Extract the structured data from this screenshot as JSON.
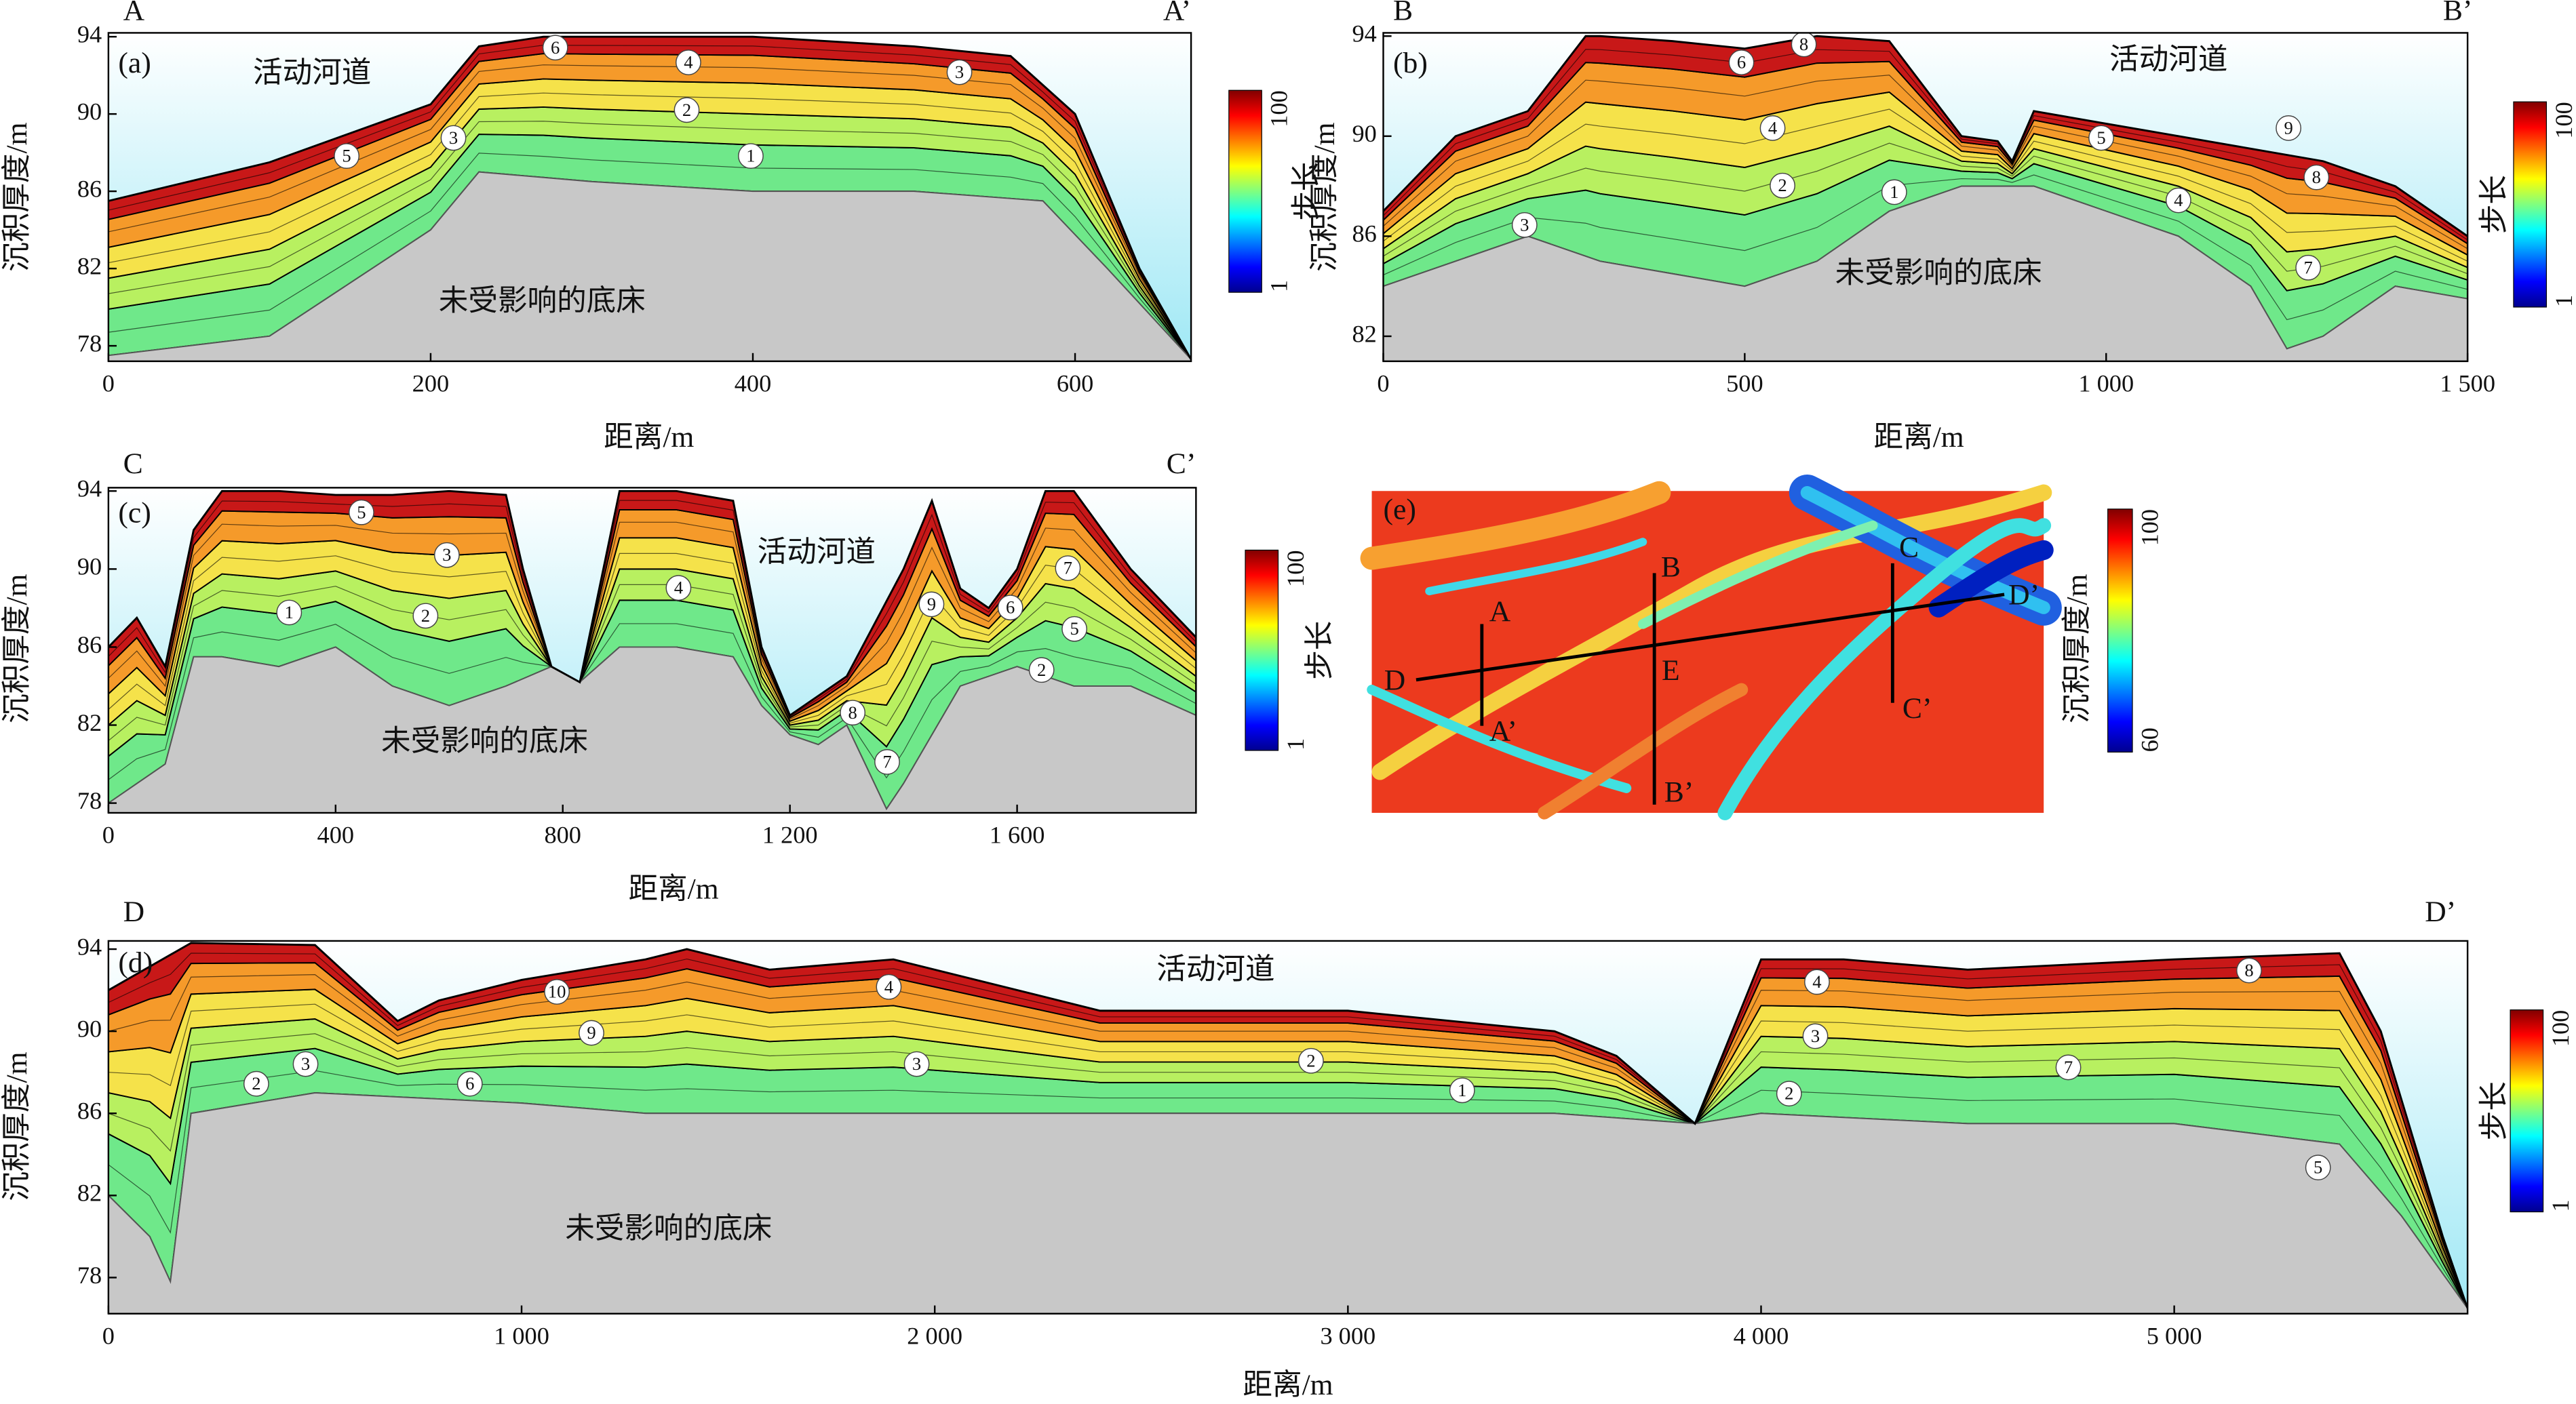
{
  "panels": [
    {
      "letter": "(a)",
      "start_label": "A",
      "end_label": "A’",
      "channel_label": "活动河道",
      "bed_label": "未受影响的底床",
      "x_label": "距离/m",
      "y_label": "沉积厚度/m",
      "xlim": [
        0,
        672
      ],
      "ylim": [
        77.2,
        94.2
      ],
      "xticks": [
        0,
        200,
        400,
        600
      ],
      "yticks": [
        78,
        82,
        86,
        90,
        94
      ],
      "bed": {
        "x": [
          0,
          100,
          200,
          230,
          300,
          400,
          500,
          580,
          620,
          672
        ],
        "y": [
          77.5,
          78.5,
          84,
          87,
          86.5,
          86,
          86,
          85.5,
          82,
          77.3
        ]
      },
      "surface": {
        "x": [
          0,
          100,
          150,
          200,
          230,
          270,
          300,
          400,
          500,
          560,
          600,
          640,
          672
        ],
        "y": [
          85.5,
          87.5,
          89,
          90.5,
          93.5,
          94,
          94,
          94,
          93.5,
          93,
          90,
          82,
          77.3
        ]
      },
      "layer_labels": [
        "5",
        "3",
        "6",
        "4",
        "2",
        "1",
        "3"
      ],
      "colorbar": {
        "label": "步长",
        "ticks": [
          1,
          100
        ]
      }
    },
    {
      "letter": "(b)",
      "start_label": "B",
      "end_label": "B’",
      "channel_label": "活动河道",
      "bed_label": "未受影响的底床",
      "x_label": "距离/m",
      "y_label": "沉积厚度/m",
      "xlim": [
        0,
        1500
      ],
      "ylim": [
        81,
        94.13
      ],
      "xticks": [
        0,
        500,
        {
          "value": 1000,
          "label": "1 000"
        },
        {
          "value": 1500,
          "label": "1 500"
        }
      ],
      "yticks": [
        82,
        86,
        90,
        94
      ],
      "bed": {
        "x": [
          0,
          100,
          200,
          300,
          400,
          500,
          600,
          700,
          800,
          900,
          1000,
          1100,
          1200,
          1250,
          1300,
          1400,
          1500
        ],
        "y": [
          84,
          85,
          86,
          85,
          84.5,
          84,
          85,
          87,
          88,
          88,
          87,
          86,
          84,
          81.5,
          82,
          84,
          83.5
        ]
      },
      "surface": {
        "x": [
          0,
          100,
          200,
          280,
          300,
          400,
          500,
          600,
          700,
          800,
          850,
          870,
          900,
          1000,
          1100,
          1200,
          1300,
          1400,
          1500
        ],
        "y": [
          87,
          90,
          91,
          94,
          94,
          93.8,
          93.5,
          94,
          93.8,
          90,
          89.8,
          89,
          91,
          90.5,
          90,
          89.5,
          89,
          88,
          86
        ]
      },
      "layer_labels": [
        "3",
        "6",
        "8",
        "4",
        "2",
        "1",
        "5",
        "9",
        "8",
        "4",
        "7"
      ],
      "colorbar": {
        "label": "步长",
        "ticks": [
          1,
          100
        ]
      }
    },
    {
      "letter": "(c)",
      "start_label": "C",
      "end_label": "C’",
      "channel_label": "活动河道",
      "bed_label": "未受影响的底床",
      "x_label": "距离/m",
      "y_label": "沉积厚度/m",
      "xlim": [
        0,
        1915
      ],
      "ylim": [
        77.5,
        94.17
      ],
      "xticks": [
        0,
        400,
        800,
        {
          "value": 1200,
          "label": "1 200"
        },
        {
          "value": 1600,
          "label": "1 600"
        }
      ],
      "yticks": [
        78,
        82,
        86,
        90,
        94
      ],
      "bed": {
        "x": [
          0,
          100,
          150,
          200,
          300,
          400,
          500,
          600,
          700,
          780,
          830,
          900,
          1000,
          1100,
          1150,
          1200,
          1250,
          1300,
          1370,
          1400,
          1500,
          1600,
          1700,
          1800,
          1915
        ],
        "y": [
          78,
          80,
          85.5,
          85.5,
          85,
          86,
          84,
          83,
          84,
          85,
          84.2,
          86,
          86,
          85.5,
          83,
          81.5,
          81,
          82,
          77.7,
          79,
          84,
          85,
          84,
          84,
          82.5
        ]
      },
      "surface": {
        "x": [
          0,
          50,
          100,
          150,
          200,
          300,
          400,
          500,
          600,
          700,
          730,
          780,
          830,
          900,
          1000,
          1100,
          1150,
          1200,
          1300,
          1400,
          1450,
          1500,
          1550,
          1600,
          1650,
          1700,
          1800,
          1915
        ],
        "y": [
          86,
          87.5,
          85,
          92,
          94,
          94,
          93.8,
          93.8,
          94,
          93.8,
          90,
          85,
          84.2,
          94,
          94,
          93.5,
          86,
          82.5,
          84.5,
          90,
          93.5,
          89,
          88,
          90,
          94,
          94,
          90,
          86.5
        ]
      },
      "layer_labels": [
        "5",
        "3",
        "1",
        "2",
        "4",
        "9",
        "6",
        "7",
        "5",
        "2",
        "8",
        "7"
      ],
      "colorbar": {
        "label": "步长",
        "ticks": [
          1,
          100
        ]
      }
    },
    {
      "letter": "(d)",
      "start_label": "D",
      "end_label": "D’",
      "channel_label": "活动河道",
      "bed_label": "未受影响的底床",
      "x_label": "距离/m",
      "y_label": "沉积厚度/m",
      "xlim": [
        0,
        5710
      ],
      "ylim": [
        76.24,
        94.4
      ],
      "xticks": [
        0,
        {
          "value": 1000,
          "label": "1 000"
        },
        {
          "value": 2000,
          "label": "2 000"
        },
        {
          "value": 3000,
          "label": "3 000"
        },
        {
          "value": 4000,
          "label": "4 000"
        },
        {
          "value": 5000,
          "label": "5 000"
        }
      ],
      "yticks": [
        78,
        82,
        86,
        90,
        94
      ],
      "bed": {
        "x": [
          0,
          100,
          150,
          200,
          500,
          1000,
          1300,
          2000,
          2500,
          3000,
          3500,
          3840,
          4000,
          4500,
          5000,
          5400,
          5550,
          5710
        ],
        "y": [
          82,
          80,
          77.8,
          86,
          87,
          86.5,
          86,
          86,
          86,
          86,
          86,
          85.5,
          86,
          85.5,
          85.5,
          84.5,
          81,
          76.5
        ]
      },
      "surface": {
        "x": [
          0,
          200,
          500,
          700,
          800,
          1000,
          1300,
          1400,
          1600,
          1900,
          2400,
          3000,
          3500,
          3650,
          3840,
          4000,
          4200,
          4500,
          5000,
          5400,
          5500,
          5650,
          5710
        ],
        "y": [
          92,
          94.3,
          94.2,
          90.5,
          91.5,
          92.5,
          93.5,
          94,
          93,
          93.5,
          91,
          91,
          90,
          88.8,
          85.5,
          93.5,
          93.5,
          93,
          93.5,
          93.8,
          90,
          80,
          76.5
        ]
      },
      "layer_labels": [
        "2",
        "3",
        "6",
        "10",
        "9",
        "4",
        "3",
        "2",
        "1",
        "4",
        "3",
        "2",
        "8",
        "7",
        "5"
      ],
      "colorbar": {
        "label": "步长",
        "ticks": [
          1,
          100
        ]
      }
    }
  ],
  "map": {
    "letter": "(e)",
    "points": [
      "A",
      "A’",
      "B",
      "B’",
      "C",
      "C’",
      "D",
      "D’",
      "E"
    ],
    "colorbar": {
      "label": "沉积厚度/m",
      "ticks": [
        60,
        100
      ]
    }
  }
}
